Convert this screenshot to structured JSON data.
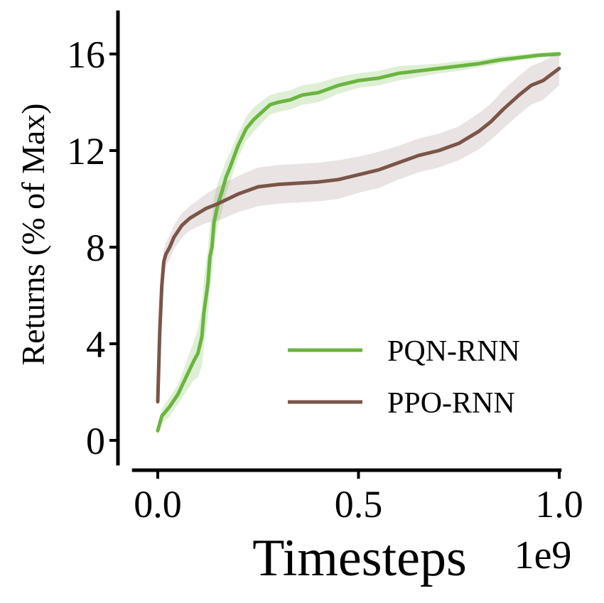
{
  "chart_data": {
    "type": "line",
    "title": "",
    "xlabel": "Timesteps",
    "x_offset_label": "1e9",
    "ylabel": "Returns (% of Max)",
    "xlim": [
      -0.05,
      1.05
    ],
    "ylim": [
      -0.6,
      17.8
    ],
    "x_ticks": [
      0.0,
      0.5,
      1.0
    ],
    "x_tick_labels": [
      "0.0",
      "0.5",
      "1.0"
    ],
    "y_ticks": [
      0,
      4,
      8,
      12,
      16
    ],
    "y_tick_labels": [
      "0",
      "4",
      "8",
      "12",
      "16"
    ],
    "grid": false,
    "legend": "lower-right",
    "series": [
      {
        "name": "PQN-RNN",
        "color": "#6ab53f",
        "band_color": "#6ab53f",
        "x": [
          0.0,
          0.01,
          0.03,
          0.05,
          0.07,
          0.09,
          0.1,
          0.11,
          0.115,
          0.12,
          0.125,
          0.13,
          0.135,
          0.14,
          0.15,
          0.16,
          0.17,
          0.18,
          0.2,
          0.22,
          0.24,
          0.26,
          0.28,
          0.3,
          0.33,
          0.36,
          0.4,
          0.45,
          0.5,
          0.55,
          0.6,
          0.65,
          0.7,
          0.75,
          0.8,
          0.85,
          0.9,
          0.95,
          1.0
        ],
        "y": [
          0.4,
          1.0,
          1.4,
          1.9,
          2.6,
          3.3,
          3.6,
          4.3,
          5.3,
          5.9,
          6.5,
          7.6,
          8.0,
          9.0,
          9.8,
          10.3,
          10.9,
          11.3,
          12.2,
          12.9,
          13.3,
          13.6,
          13.9,
          14.0,
          14.1,
          14.3,
          14.4,
          14.7,
          14.9,
          15.0,
          15.2,
          15.3,
          15.4,
          15.5,
          15.6,
          15.75,
          15.85,
          15.95,
          16.0
        ],
        "band": [
          0.2,
          0.3,
          0.4,
          0.4,
          0.6,
          0.8,
          1.0,
          1.2,
          1.4,
          1.4,
          1.4,
          1.3,
          1.2,
          1.0,
          0.9,
          0.8,
          0.7,
          0.6,
          0.5,
          0.5,
          0.5,
          0.45,
          0.4,
          0.4,
          0.4,
          0.4,
          0.4,
          0.35,
          0.3,
          0.3,
          0.3,
          0.25,
          0.2,
          0.2,
          0.15,
          0.15,
          0.12,
          0.1,
          0.1
        ]
      },
      {
        "name": "PPO-RNN",
        "color": "#7a5548",
        "band_color": "#a08080",
        "x": [
          0.0,
          0.005,
          0.01,
          0.015,
          0.02,
          0.03,
          0.04,
          0.06,
          0.08,
          0.1,
          0.12,
          0.15,
          0.2,
          0.25,
          0.3,
          0.35,
          0.4,
          0.45,
          0.5,
          0.55,
          0.6,
          0.65,
          0.7,
          0.75,
          0.8,
          0.83,
          0.86,
          0.9,
          0.93,
          0.96,
          1.0
        ],
        "y": [
          1.6,
          4.5,
          6.4,
          7.4,
          7.7,
          8.0,
          8.4,
          8.9,
          9.2,
          9.4,
          9.6,
          9.8,
          10.2,
          10.5,
          10.6,
          10.65,
          10.7,
          10.8,
          11.0,
          11.2,
          11.5,
          11.8,
          12.0,
          12.3,
          12.8,
          13.2,
          13.7,
          14.3,
          14.7,
          14.9,
          15.4
        ],
        "band": [
          0.3,
          0.5,
          0.5,
          0.5,
          0.5,
          0.5,
          0.5,
          0.5,
          0.5,
          0.55,
          0.6,
          0.7,
          0.75,
          0.8,
          0.8,
          0.8,
          0.8,
          0.8,
          0.75,
          0.75,
          0.7,
          0.7,
          0.7,
          0.7,
          0.75,
          0.75,
          0.8,
          0.8,
          0.8,
          0.8,
          0.7
        ]
      }
    ]
  }
}
